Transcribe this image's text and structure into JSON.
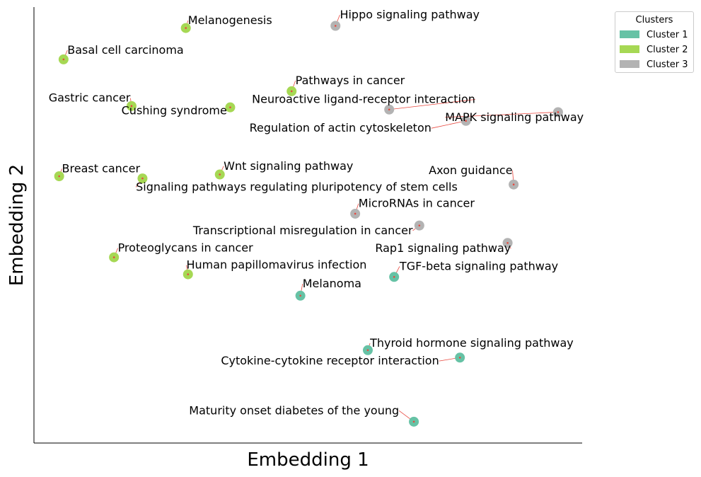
{
  "chart_data": {
    "type": "scatter",
    "xlabel": "Embedding 1",
    "ylabel": "Embedding 2",
    "xlim": [
      0,
      100
    ],
    "ylim": [
      0,
      100
    ],
    "grid": false,
    "legend": {
      "title": "Clusters",
      "placement": "upper-right-outside"
    },
    "series": [
      {
        "name": "Cluster 1",
        "color": "#66c2a5",
        "points": [
          {
            "label": "TGF-beta signaling pathway",
            "x": 65.7,
            "y": 38.1,
            "lx": 66.7,
            "ly": 39.7,
            "ha": "left"
          },
          {
            "label": "Melanoma",
            "x": 48.6,
            "y": 33.8,
            "lx": 49.0,
            "ly": 35.7,
            "ha": "left"
          },
          {
            "label": "Thyroid hormone signaling pathway",
            "x": 60.9,
            "y": 21.3,
            "lx": 61.3,
            "ly": 22.1,
            "ha": "left"
          },
          {
            "label": "Cytokine-cytokine receptor interaction",
            "x": 77.7,
            "y": 19.6,
            "lx": 73.9,
            "ly": 18.0,
            "ha": "right"
          },
          {
            "label": "Maturity onset diabetes of the young",
            "x": 69.3,
            "y": 4.9,
            "lx": 66.6,
            "ly": 6.6,
            "ha": "right"
          }
        ]
      },
      {
        "name": "Cluster 2",
        "color": "#a6d854",
        "points": [
          {
            "label": "Melanogenesis",
            "x": 27.7,
            "y": 95.2,
            "lx": 28.1,
            "ly": 96.1,
            "ha": "left"
          },
          {
            "label": "Basal cell carcinoma",
            "x": 5.4,
            "y": 88.0,
            "lx": 6.1,
            "ly": 89.3,
            "ha": "left"
          },
          {
            "label": "Pathways in cancer",
            "x": 47.0,
            "y": 80.7,
            "lx": 47.7,
            "ly": 82.3,
            "ha": "left"
          },
          {
            "label": "Gastric cancer",
            "x": 17.8,
            "y": 77.3,
            "lx": 17.6,
            "ly": 78.3,
            "ha": "right"
          },
          {
            "label": "Cushing syndrome",
            "x": 35.8,
            "y": 77.0,
            "lx": 35.2,
            "ly": 75.4,
            "ha": "right"
          },
          {
            "label": "Breast cancer",
            "x": 4.6,
            "y": 61.2,
            "lx": 5.1,
            "ly": 62.1,
            "ha": "left"
          },
          {
            "label": "Signaling pathways regulating pluripotency of stem cells",
            "x": 19.8,
            "y": 60.7,
            "lx": 18.6,
            "ly": 57.9,
            "ha": "left"
          },
          {
            "label": "Wnt signaling pathway",
            "x": 33.9,
            "y": 61.6,
            "lx": 34.6,
            "ly": 62.7,
            "ha": "left"
          },
          {
            "label": "Proteoglycans in cancer",
            "x": 14.6,
            "y": 42.6,
            "lx": 15.3,
            "ly": 43.9,
            "ha": "left"
          },
          {
            "label": "Human papillomavirus infection",
            "x": 28.1,
            "y": 38.7,
            "lx": 27.8,
            "ly": 40.0,
            "ha": "left"
          }
        ]
      },
      {
        "name": "Cluster 3",
        "color": "#b3b3b3",
        "points": [
          {
            "label": "Hippo signaling pathway",
            "x": 55.0,
            "y": 95.7,
            "lx": 55.8,
            "ly": 97.4,
            "ha": "left"
          },
          {
            "label": "Neuroactive ligand-receptor interaction",
            "x": 64.8,
            "y": 76.5,
            "lx": 80.5,
            "ly": 78.0,
            "ha": "right"
          },
          {
            "label": "MAPK signaling pathway",
            "x": 95.6,
            "y": 75.9,
            "lx": 75.0,
            "ly": 73.9,
            "ha": "left"
          },
          {
            "label": "Regulation of actin cytoskeleton",
            "x": 78.8,
            "y": 73.9,
            "lx": 72.5,
            "ly": 71.4,
            "ha": "right"
          },
          {
            "label": "Axon guidance",
            "x": 87.5,
            "y": 59.3,
            "lx": 87.3,
            "ly": 61.7,
            "ha": "right"
          },
          {
            "label": "MicroRNAs in cancer",
            "x": 58.6,
            "y": 52.6,
            "lx": 59.2,
            "ly": 54.1,
            "ha": "left"
          },
          {
            "label": "Transcriptional misregulation in cancer",
            "x": 70.3,
            "y": 49.9,
            "lx": 69.1,
            "ly": 47.9,
            "ha": "right"
          },
          {
            "label": "Rap1 signaling pathway",
            "x": 86.4,
            "y": 45.9,
            "lx": 87.0,
            "ly": 43.8,
            "ha": "right"
          }
        ]
      }
    ]
  }
}
